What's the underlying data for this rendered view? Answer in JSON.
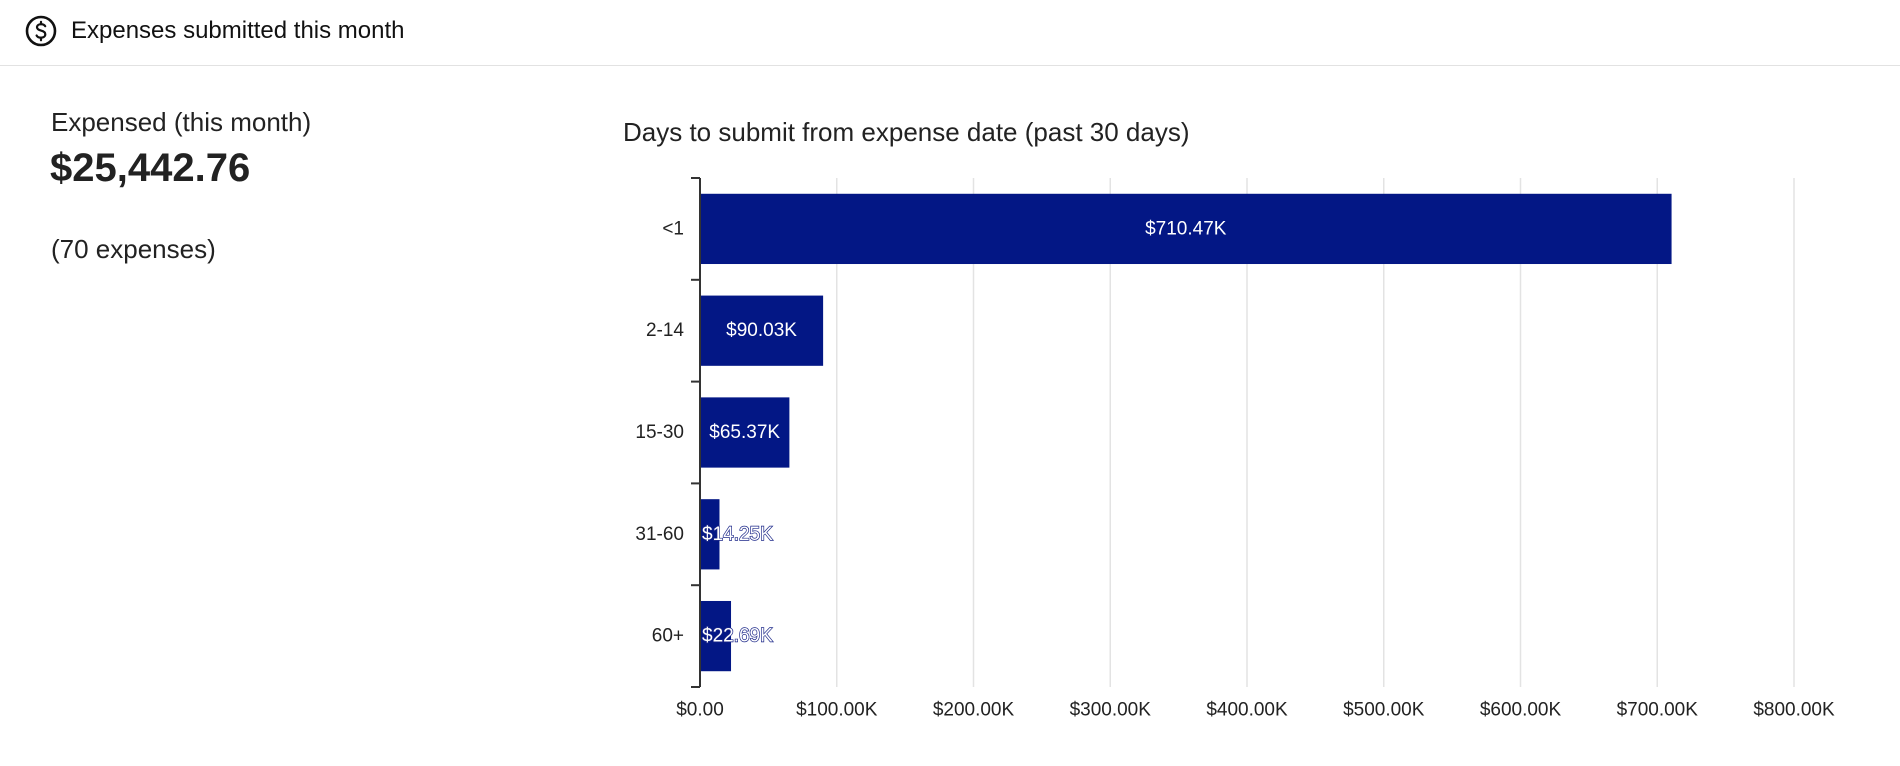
{
  "header": {
    "icon": "dollar-circle-icon",
    "title": "Expenses submitted this month"
  },
  "metric": {
    "label": "Expensed (this month)",
    "value": "$25,442.76",
    "count": "(70 expenses)"
  },
  "colors": {
    "bar": "#031785",
    "grid": "#e3e3e3",
    "axis": "#333333"
  },
  "chart_data": {
    "type": "bar",
    "orientation": "horizontal",
    "title": "Days to submit from expense date (past 30 days)",
    "xlabel": "",
    "ylabel": "",
    "categories": [
      "<1",
      "2-14",
      "15-30",
      "31-60",
      "60+"
    ],
    "values": [
      710470,
      90030,
      65370,
      14250,
      22690
    ],
    "value_labels": [
      "$710.47K",
      "$90.03K",
      "$65.37K",
      "$14.25K",
      "$22.69K"
    ],
    "xlim": [
      0,
      800000
    ],
    "x_ticks": [
      0,
      100000,
      200000,
      300000,
      400000,
      500000,
      600000,
      700000,
      800000
    ],
    "x_tick_labels": [
      "$0.00",
      "$100.00K",
      "$200.00K",
      "$300.00K",
      "$400.00K",
      "$500.00K",
      "$600.00K",
      "$700.00K",
      "$800.00K"
    ],
    "grid": "vertical",
    "legend": "none"
  }
}
